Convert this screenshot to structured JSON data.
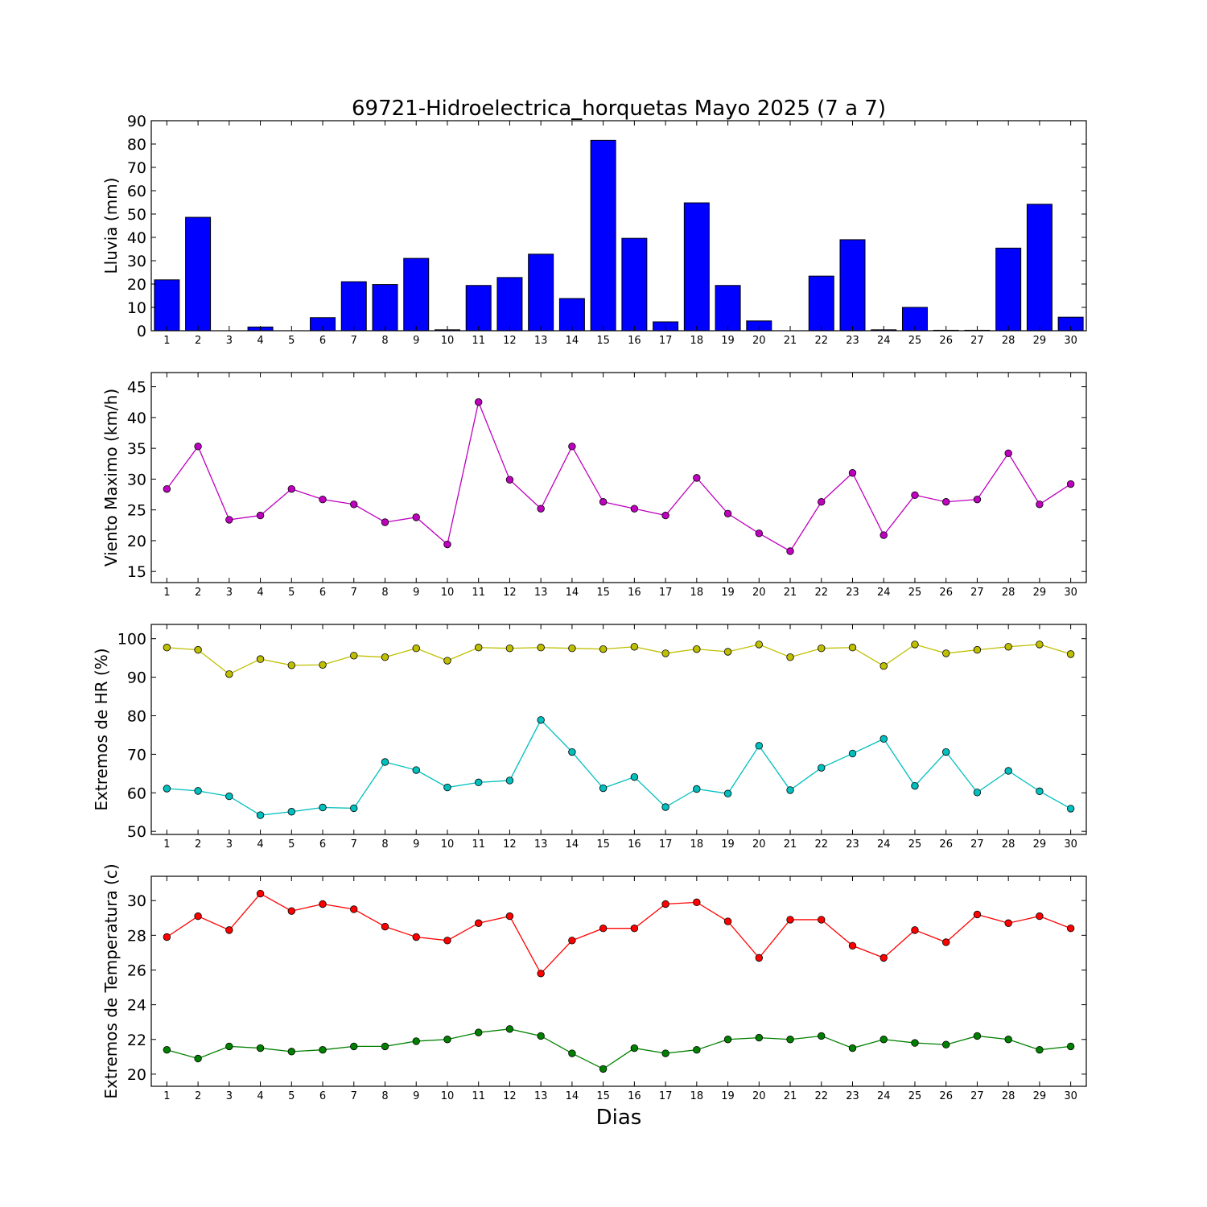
{
  "title": "69721-Hidroelectrica_horquetas Mayo 2025  (7 a 7)",
  "xlabel": "Dias",
  "chart_data": [
    {
      "type": "bar",
      "ylabel": "Lluvia (mm)",
      "ylim": [
        0,
        90
      ],
      "yticks": [
        0,
        10,
        20,
        30,
        40,
        50,
        60,
        70,
        80,
        90
      ],
      "grid": false,
      "categories": [
        "1",
        "2",
        "3",
        "4",
        "5",
        "6",
        "7",
        "8",
        "9",
        "10",
        "11",
        "12",
        "13",
        "14",
        "15",
        "16",
        "17",
        "18",
        "19",
        "20",
        "21",
        "22",
        "23",
        "24",
        "25",
        "26",
        "27",
        "28",
        "29",
        "30"
      ],
      "series": [
        {
          "color": "#0000ff",
          "values": [
            21.8,
            48.6,
            0.0,
            1.6,
            0.0,
            5.6,
            21.0,
            19.8,
            31.0,
            0.4,
            19.4,
            22.8,
            32.8,
            13.8,
            81.6,
            39.6,
            3.8,
            54.8,
            19.4,
            4.2,
            0.0,
            23.4,
            39.0,
            0.4,
            10.0,
            0.2,
            0.2,
            35.4,
            54.2,
            5.8
          ]
        }
      ]
    },
    {
      "type": "line",
      "ylabel": "Viento Maximo (km/h)",
      "ylim": [
        13.2,
        47.3
      ],
      "yticks": [
        15,
        20,
        25,
        30,
        35,
        40,
        45
      ],
      "grid": false,
      "categories": [
        "1",
        "2",
        "3",
        "4",
        "5",
        "6",
        "7",
        "8",
        "9",
        "10",
        "11",
        "12",
        "13",
        "14",
        "15",
        "16",
        "17",
        "18",
        "19",
        "20",
        "21",
        "22",
        "23",
        "24",
        "25",
        "26",
        "27",
        "28",
        "29",
        "30"
      ],
      "series": [
        {
          "color": "#bf00bf",
          "values": [
            28.4,
            35.3,
            23.4,
            24.1,
            28.4,
            26.7,
            25.9,
            23.0,
            23.8,
            19.4,
            42.5,
            29.9,
            25.2,
            35.3,
            26.3,
            25.2,
            24.1,
            30.2,
            24.4,
            21.2,
            18.3,
            26.3,
            31.0,
            20.9,
            27.4,
            26.3,
            26.7,
            34.2,
            25.9,
            29.2
          ]
        }
      ]
    },
    {
      "type": "line",
      "ylabel": "Extremos de HR (%)",
      "ylim": [
        49.2,
        103.7
      ],
      "yticks": [
        50,
        60,
        70,
        80,
        90,
        100
      ],
      "grid": false,
      "categories": [
        "1",
        "2",
        "3",
        "4",
        "5",
        "6",
        "7",
        "8",
        "9",
        "10",
        "11",
        "12",
        "13",
        "14",
        "15",
        "16",
        "17",
        "18",
        "19",
        "20",
        "21",
        "22",
        "23",
        "24",
        "25",
        "26",
        "27",
        "28",
        "29",
        "30"
      ],
      "series": [
        {
          "color": "#bfbf00",
          "values": [
            97.7,
            97.1,
            90.8,
            94.7,
            93.1,
            93.2,
            95.6,
            95.2,
            97.5,
            94.3,
            97.7,
            97.5,
            97.7,
            97.5,
            97.3,
            97.9,
            96.2,
            97.3,
            96.6,
            98.5,
            95.2,
            97.5,
            97.7,
            92.9,
            98.5,
            96.2,
            97.1,
            97.9,
            98.5,
            96.0
          ]
        },
        {
          "color": "#00bfbf",
          "values": [
            61.1,
            60.5,
            59.1,
            54.2,
            55.1,
            56.2,
            56.0,
            68.0,
            65.9,
            61.4,
            62.7,
            63.2,
            78.9,
            70.6,
            61.2,
            64.1,
            56.3,
            61.0,
            59.8,
            72.2,
            60.7,
            66.5,
            70.2,
            74.0,
            61.8,
            70.6,
            60.1,
            65.7,
            60.4,
            55.9
          ]
        }
      ]
    },
    {
      "type": "line",
      "ylabel": "Extremos de Temperatura (c)",
      "ylim": [
        19.3,
        31.4
      ],
      "yticks": [
        20,
        22,
        24,
        26,
        28,
        30
      ],
      "grid": false,
      "categories": [
        "1",
        "2",
        "3",
        "4",
        "5",
        "6",
        "7",
        "8",
        "9",
        "10",
        "11",
        "12",
        "13",
        "14",
        "15",
        "16",
        "17",
        "18",
        "19",
        "20",
        "21",
        "22",
        "23",
        "24",
        "25",
        "26",
        "27",
        "28",
        "29",
        "30"
      ],
      "series": [
        {
          "color": "#ff0000",
          "values": [
            27.9,
            29.1,
            28.3,
            30.4,
            29.4,
            29.8,
            29.5,
            28.5,
            27.9,
            27.7,
            28.7,
            29.1,
            25.8,
            27.7,
            28.4,
            28.4,
            29.8,
            29.9,
            28.8,
            26.7,
            28.9,
            28.9,
            27.4,
            26.7,
            28.3,
            27.6,
            29.2,
            28.7,
            29.1,
            28.4
          ]
        },
        {
          "color": "#008000",
          "values": [
            21.4,
            20.9,
            21.6,
            21.5,
            21.3,
            21.4,
            21.6,
            21.6,
            21.9,
            22.0,
            22.4,
            22.6,
            22.2,
            21.2,
            20.3,
            21.5,
            21.2,
            21.4,
            22.0,
            22.1,
            22.0,
            22.2,
            21.5,
            22.0,
            21.8,
            21.7,
            22.2,
            22.0,
            21.4,
            21.6
          ]
        }
      ]
    }
  ]
}
